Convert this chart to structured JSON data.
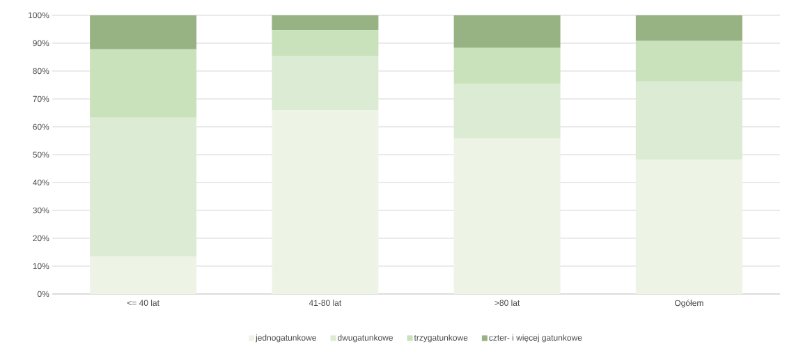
{
  "chart_data": {
    "type": "bar",
    "stacked": true,
    "categories": [
      "<= 40 lat",
      "41-80 lat",
      ">80 lat",
      "Ogółem"
    ],
    "series": [
      {
        "name": "jednogatunkowe",
        "color": "#edf4e6",
        "values": [
          13.5,
          66,
          55.8,
          48.2
        ]
      },
      {
        "name": "dwugatunkowe",
        "color": "#dcebd3",
        "values": [
          49.8,
          19.5,
          19.7,
          28
        ]
      },
      {
        "name": "trzygatunkowe",
        "color": "#c9e2bb",
        "values": [
          24.5,
          9.2,
          12.8,
          14.6
        ]
      },
      {
        "name": "czter- i więcej gatunkowe",
        "color": "#97b384",
        "values": [
          12.2,
          5.3,
          11.7,
          9.2
        ]
      }
    ],
    "ylim": [
      0,
      100
    ],
    "yticks": [
      {
        "value": 0,
        "label": "0%"
      },
      {
        "value": 10,
        "label": "10%"
      },
      {
        "value": 20,
        "label": "20%"
      },
      {
        "value": 30,
        "label": "30%"
      },
      {
        "value": 40,
        "label": "40%"
      },
      {
        "value": 50,
        "label": "50%"
      },
      {
        "value": 60,
        "label": "60%"
      },
      {
        "value": 70,
        "label": "70%"
      },
      {
        "value": 80,
        "label": "80%"
      },
      {
        "value": 90,
        "label": "90%"
      },
      {
        "value": 100,
        "label": "100%"
      }
    ],
    "grid": "y",
    "legend": "bottom"
  }
}
